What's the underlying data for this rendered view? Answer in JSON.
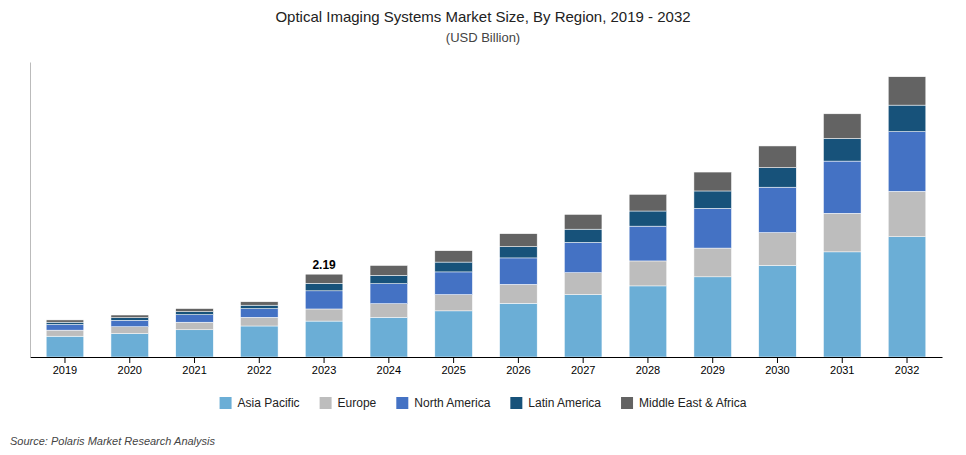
{
  "chart_data": {
    "type": "bar",
    "stacked": true,
    "title": "Optical Imaging Systems Market Size, By Region, 2019 - 2032",
    "subtitle": "(USD Billion)",
    "categories": [
      "2019",
      "2020",
      "2021",
      "2022",
      "2023",
      "2024",
      "2025",
      "2026",
      "2027",
      "2028",
      "2029",
      "2030",
      "2031",
      "2032"
    ],
    "series": [
      {
        "name": "Asia Pacific",
        "color": "#6BAED6",
        "values": [
          0.55,
          0.62,
          0.72,
          0.82,
          0.95,
          1.05,
          1.22,
          1.42,
          1.65,
          1.88,
          2.12,
          2.42,
          2.78,
          3.18
        ]
      },
      {
        "name": "Europe",
        "color": "#BDBDBD",
        "values": [
          0.16,
          0.18,
          0.2,
          0.23,
          0.32,
          0.36,
          0.43,
          0.5,
          0.58,
          0.66,
          0.76,
          0.87,
          1.02,
          1.2
        ]
      },
      {
        "name": "North America",
        "color": "#4472C4",
        "values": [
          0.15,
          0.17,
          0.2,
          0.23,
          0.48,
          0.53,
          0.6,
          0.7,
          0.8,
          0.92,
          1.05,
          1.2,
          1.38,
          1.58
        ]
      },
      {
        "name": "Latin America",
        "color": "#17527A",
        "values": [
          0.06,
          0.07,
          0.08,
          0.09,
          0.2,
          0.22,
          0.26,
          0.3,
          0.35,
          0.4,
          0.46,
          0.52,
          0.6,
          0.7
        ]
      },
      {
        "name": "Middle East & Africa",
        "color": "#636363",
        "values": [
          0.06,
          0.07,
          0.08,
          0.09,
          0.24,
          0.26,
          0.3,
          0.34,
          0.39,
          0.44,
          0.5,
          0.57,
          0.65,
          0.75
        ]
      }
    ],
    "annotations": [
      {
        "text": "2.19",
        "category": "2023"
      }
    ],
    "source": "Source: Polaris  Market Research Analysis",
    "ylim": [
      0,
      7.8
    ],
    "tick_labels": "x",
    "legend": "bottom"
  }
}
